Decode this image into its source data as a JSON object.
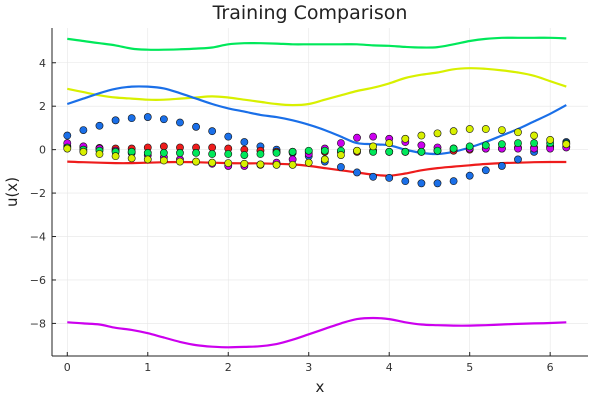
{
  "chart_data": {
    "type": "line",
    "title": "Training Comparison",
    "xlabel": "x",
    "ylabel": "u(x)",
    "xlim": [
      -0.19,
      6.47
    ],
    "ylim": [
      -9.5,
      5.6
    ],
    "xticks": [
      0,
      1,
      2,
      3,
      4,
      5,
      6
    ],
    "yticks": [
      -8,
      -6,
      -4,
      -2,
      0,
      2,
      4
    ],
    "xtick_labels": [
      "0",
      "1",
      "2",
      "3",
      "4",
      "5",
      "6"
    ],
    "ytick_labels": [
      "−8",
      "−6",
      "−4",
      "−2",
      "0",
      "2",
      "4"
    ],
    "grid": true,
    "legend": "none",
    "lines": [
      {
        "color": "#00e85a",
        "x": [
          0.0,
          0.2,
          0.4,
          0.6,
          0.8,
          1.0,
          1.2,
          1.4,
          1.6,
          1.8,
          2.0,
          2.2,
          2.4,
          2.6,
          2.8,
          3.0,
          3.2,
          3.4,
          3.6,
          3.8,
          4.0,
          4.2,
          4.4,
          4.6,
          4.8,
          5.0,
          5.2,
          5.4,
          5.6,
          5.8,
          6.0,
          6.2
        ],
        "y": [
          5.1,
          5.0,
          4.9,
          4.8,
          4.65,
          4.6,
          4.6,
          4.62,
          4.65,
          4.7,
          4.85,
          4.9,
          4.9,
          4.88,
          4.85,
          4.85,
          4.85,
          4.85,
          4.85,
          4.8,
          4.78,
          4.73,
          4.7,
          4.72,
          4.85,
          5.0,
          5.1,
          5.15,
          5.15,
          5.15,
          5.15,
          5.12
        ]
      },
      {
        "color": "#d8f000",
        "x": [
          0.0,
          0.2,
          0.4,
          0.6,
          0.8,
          1.0,
          1.2,
          1.4,
          1.6,
          1.8,
          2.0,
          2.2,
          2.4,
          2.6,
          2.8,
          3.0,
          3.2,
          3.4,
          3.6,
          3.8,
          4.0,
          4.2,
          4.4,
          4.6,
          4.8,
          5.0,
          5.2,
          5.4,
          5.6,
          5.8,
          6.0,
          6.2
        ],
        "y": [
          2.8,
          2.65,
          2.5,
          2.4,
          2.35,
          2.3,
          2.3,
          2.35,
          2.4,
          2.45,
          2.4,
          2.3,
          2.2,
          2.1,
          2.05,
          2.1,
          2.3,
          2.5,
          2.7,
          2.85,
          3.05,
          3.3,
          3.45,
          3.55,
          3.7,
          3.75,
          3.72,
          3.65,
          3.55,
          3.4,
          3.15,
          2.9
        ]
      },
      {
        "color": "#1a6fe8",
        "x": [
          0.0,
          0.2,
          0.4,
          0.6,
          0.8,
          1.0,
          1.2,
          1.4,
          1.6,
          1.8,
          2.0,
          2.2,
          2.4,
          2.6,
          2.8,
          3.0,
          3.2,
          3.4,
          3.6,
          3.8,
          4.0,
          4.2,
          4.4,
          4.6,
          4.8,
          5.0,
          5.2,
          5.4,
          5.6,
          5.8,
          6.0,
          6.2
        ],
        "y": [
          2.1,
          2.35,
          2.6,
          2.8,
          2.9,
          2.9,
          2.82,
          2.6,
          2.35,
          2.1,
          1.9,
          1.75,
          1.6,
          1.5,
          1.35,
          1.15,
          0.9,
          0.6,
          0.3,
          0.25,
          0.2,
          0.0,
          -0.15,
          -0.2,
          -0.1,
          0.1,
          0.35,
          0.65,
          0.95,
          1.3,
          1.65,
          2.05
        ]
      },
      {
        "color": "#ee1c1c",
        "x": [
          0.0,
          0.2,
          0.4,
          0.6,
          0.8,
          1.0,
          1.2,
          1.4,
          1.6,
          1.8,
          2.0,
          2.2,
          2.4,
          2.6,
          2.8,
          3.0,
          3.2,
          3.4,
          3.6,
          3.8,
          4.0,
          4.2,
          4.4,
          4.6,
          4.8,
          5.0,
          5.2,
          5.4,
          5.6,
          5.8,
          6.0,
          6.2
        ],
        "y": [
          -0.55,
          -0.58,
          -0.6,
          -0.62,
          -0.62,
          -0.6,
          -0.58,
          -0.57,
          -0.58,
          -0.6,
          -0.62,
          -0.63,
          -0.63,
          -0.65,
          -0.68,
          -0.75,
          -0.85,
          -0.95,
          -1.05,
          -1.15,
          -1.2,
          -1.1,
          -0.95,
          -0.85,
          -0.78,
          -0.72,
          -0.66,
          -0.62,
          -0.6,
          -0.58,
          -0.57,
          -0.57
        ]
      },
      {
        "color": "#cc00ee",
        "x": [
          0.0,
          0.2,
          0.4,
          0.6,
          0.8,
          1.0,
          1.2,
          1.4,
          1.6,
          1.8,
          2.0,
          2.2,
          2.4,
          2.6,
          2.8,
          3.0,
          3.2,
          3.4,
          3.6,
          3.8,
          4.0,
          4.2,
          4.4,
          4.6,
          4.8,
          5.0,
          5.2,
          5.4,
          5.6,
          5.8,
          6.0,
          6.2
        ],
        "y": [
          -7.95,
          -8.0,
          -8.05,
          -8.2,
          -8.3,
          -8.45,
          -8.65,
          -8.85,
          -9.0,
          -9.07,
          -9.1,
          -9.08,
          -9.05,
          -8.95,
          -8.75,
          -8.5,
          -8.25,
          -8.0,
          -7.8,
          -7.75,
          -7.8,
          -7.95,
          -8.05,
          -8.08,
          -8.1,
          -8.1,
          -8.08,
          -8.05,
          -8.02,
          -8.0,
          -7.98,
          -7.95
        ]
      }
    ],
    "points": [
      {
        "color": "#1a6fe8",
        "x": [
          0.0,
          0.2,
          0.4,
          0.6,
          0.8,
          1.0,
          1.2,
          1.4,
          1.6,
          1.8,
          2.0,
          2.2,
          2.4,
          2.6,
          2.8,
          3.0,
          3.2,
          3.4,
          3.6,
          3.8,
          4.0,
          4.2,
          4.4,
          4.6,
          4.8,
          5.0,
          5.2,
          5.4,
          5.6,
          5.8,
          6.0,
          6.2
        ],
        "y": [
          0.65,
          0.9,
          1.1,
          1.35,
          1.45,
          1.5,
          1.4,
          1.25,
          1.05,
          0.85,
          0.6,
          0.35,
          0.15,
          0.0,
          -0.15,
          -0.3,
          -0.55,
          -0.8,
          -1.05,
          -1.25,
          -1.3,
          -1.45,
          -1.55,
          -1.55,
          -1.45,
          -1.2,
          -0.95,
          -0.75,
          -0.45,
          -0.1,
          0.15,
          0.35
        ]
      },
      {
        "color": "#ee1c1c",
        "x": [
          0.0,
          0.2,
          0.4,
          0.6,
          0.8,
          1.0,
          1.2,
          1.4,
          1.6,
          1.8,
          2.0,
          2.2,
          2.4,
          2.6,
          2.8,
          3.0,
          3.2,
          3.4,
          3.6,
          3.8,
          4.0,
          4.2,
          4.4,
          4.6,
          4.8,
          5.0,
          5.2,
          5.4,
          5.6,
          5.8,
          6.0,
          6.2
        ],
        "y": [
          0.15,
          0.1,
          0.08,
          0.05,
          0.05,
          0.1,
          0.15,
          0.1,
          0.1,
          0.1,
          0.05,
          0.0,
          -0.05,
          -0.1,
          -0.1,
          -0.1,
          -0.1,
          -0.1,
          -0.1,
          -0.05,
          -0.1,
          -0.1,
          -0.1,
          -0.05,
          -0.05,
          0.0,
          0.05,
          0.05,
          0.1,
          0.1,
          0.1,
          0.15
        ]
      },
      {
        "color": "#cc00ee",
        "x": [
          0.0,
          0.2,
          0.4,
          0.6,
          0.8,
          1.0,
          1.2,
          1.4,
          1.6,
          1.8,
          2.0,
          2.2,
          2.4,
          2.6,
          2.8,
          3.0,
          3.2,
          3.4,
          3.6,
          3.8,
          4.0,
          4.2,
          4.4,
          4.6,
          4.8,
          5.0,
          5.2,
          5.4,
          5.6,
          5.8,
          6.0,
          6.2
        ],
        "y": [
          0.3,
          0.15,
          0.05,
          -0.05,
          -0.15,
          -0.25,
          -0.35,
          -0.45,
          -0.55,
          -0.65,
          -0.75,
          -0.75,
          -0.7,
          -0.6,
          -0.45,
          -0.2,
          0.05,
          0.3,
          0.55,
          0.6,
          0.5,
          0.35,
          0.2,
          0.1,
          0.05,
          0.05,
          0.05,
          0.05,
          0.05,
          0.05,
          0.05,
          0.1
        ]
      },
      {
        "color": "#00e85a",
        "x": [
          0.0,
          0.2,
          0.4,
          0.6,
          0.8,
          1.0,
          1.2,
          1.4,
          1.6,
          1.8,
          2.0,
          2.2,
          2.4,
          2.6,
          2.8,
          3.0,
          3.2,
          3.4,
          3.6,
          3.8,
          4.0,
          4.2,
          4.4,
          4.6,
          4.8,
          5.0,
          5.2,
          5.4,
          5.6,
          5.8,
          6.0,
          6.2
        ],
        "y": [
          0.1,
          0.0,
          -0.05,
          -0.1,
          -0.1,
          -0.15,
          -0.15,
          -0.15,
          -0.15,
          -0.2,
          -0.2,
          -0.25,
          -0.2,
          -0.15,
          -0.1,
          -0.05,
          -0.05,
          -0.05,
          -0.05,
          -0.1,
          -0.1,
          -0.1,
          -0.1,
          -0.05,
          0.05,
          0.15,
          0.2,
          0.25,
          0.3,
          0.3,
          0.3,
          0.3
        ]
      },
      {
        "color": "#d8f000",
        "x": [
          0.0,
          0.2,
          0.4,
          0.6,
          0.8,
          1.0,
          1.2,
          1.4,
          1.6,
          1.8,
          2.0,
          2.2,
          2.4,
          2.6,
          2.8,
          3.0,
          3.2,
          3.4,
          3.6,
          3.8,
          4.0,
          4.2,
          4.4,
          4.6,
          4.8,
          5.0,
          5.2,
          5.4,
          5.6,
          5.8,
          6.0,
          6.2
        ],
        "y": [
          0.05,
          -0.1,
          -0.2,
          -0.3,
          -0.4,
          -0.45,
          -0.5,
          -0.55,
          -0.55,
          -0.6,
          -0.62,
          -0.65,
          -0.68,
          -0.7,
          -0.7,
          -0.6,
          -0.45,
          -0.25,
          -0.05,
          0.15,
          0.3,
          0.5,
          0.65,
          0.75,
          0.85,
          0.95,
          0.95,
          0.9,
          0.8,
          0.65,
          0.45,
          0.25
        ]
      }
    ]
  }
}
